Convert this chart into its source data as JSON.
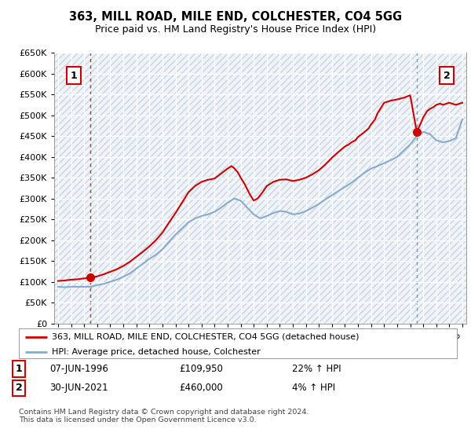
{
  "title": "363, MILL ROAD, MILE END, COLCHESTER, CO4 5GG",
  "subtitle": "Price paid vs. HM Land Registry's House Price Index (HPI)",
  "sale1_date": "07-JUN-1996",
  "sale1_price": 109950,
  "sale1_label": "£109,950",
  "sale1_hpi": "22% ↑ HPI",
  "sale2_date": "30-JUN-2021",
  "sale2_price": 460000,
  "sale2_label": "£460,000",
  "sale2_hpi": "4% ↑ HPI",
  "legend1": "363, MILL ROAD, MILE END, COLCHESTER, CO4 5GG (detached house)",
  "legend2": "HPI: Average price, detached house, Colchester",
  "footer": "Contains HM Land Registry data © Crown copyright and database right 2024.\nThis data is licensed under the Open Government Licence v3.0.",
  "red_color": "#cc0000",
  "blue_color": "#88aacc",
  "grid_color": "#cccccc",
  "sale1_x": 1996.44,
  "sale2_x": 2021.5,
  "hpi_data_x": [
    1994.0,
    1994.5,
    1995.0,
    1995.5,
    1996.0,
    1996.5,
    1997.0,
    1997.5,
    1998.0,
    1998.5,
    1999.0,
    1999.5,
    2000.0,
    2000.5,
    2001.0,
    2001.5,
    2002.0,
    2002.5,
    2003.0,
    2003.5,
    2004.0,
    2004.5,
    2005.0,
    2005.5,
    2006.0,
    2006.5,
    2007.0,
    2007.5,
    2008.0,
    2008.5,
    2009.0,
    2009.5,
    2010.0,
    2010.5,
    2011.0,
    2011.5,
    2012.0,
    2012.5,
    2013.0,
    2013.5,
    2014.0,
    2014.5,
    2015.0,
    2015.5,
    2016.0,
    2016.5,
    2017.0,
    2017.5,
    2018.0,
    2018.5,
    2019.0,
    2019.5,
    2020.0,
    2020.5,
    2021.0,
    2021.5,
    2022.0,
    2022.5,
    2023.0,
    2023.5,
    2024.0,
    2024.5,
    2025.0
  ],
  "hpi_data_y": [
    88000,
    87000,
    88000,
    88000,
    88000,
    88000,
    92000,
    95000,
    100000,
    105000,
    112000,
    120000,
    132000,
    143000,
    155000,
    165000,
    178000,
    196000,
    213000,
    228000,
    243000,
    252000,
    258000,
    262000,
    268000,
    278000,
    290000,
    300000,
    295000,
    278000,
    262000,
    252000,
    258000,
    265000,
    270000,
    268000,
    262000,
    264000,
    270000,
    278000,
    287000,
    298000,
    308000,
    318000,
    328000,
    338000,
    350000,
    362000,
    372000,
    378000,
    385000,
    392000,
    400000,
    415000,
    430000,
    450000,
    460000,
    455000,
    440000,
    435000,
    438000,
    445000,
    490000
  ],
  "price_data_x": [
    1994.0,
    1994.5,
    1995.0,
    1995.5,
    1996.0,
    1996.44,
    1997.0,
    1997.5,
    1998.0,
    1998.5,
    1999.0,
    1999.5,
    2000.0,
    2000.5,
    2001.0,
    2001.5,
    2002.0,
    2002.5,
    2003.0,
    2003.5,
    2004.0,
    2004.5,
    2005.0,
    2005.5,
    2006.0,
    2006.5,
    2007.0,
    2007.3,
    2007.5,
    2007.8,
    2008.0,
    2008.3,
    2008.7,
    2009.0,
    2009.3,
    2009.7,
    2010.0,
    2010.5,
    2011.0,
    2011.5,
    2012.0,
    2012.5,
    2013.0,
    2013.5,
    2014.0,
    2014.5,
    2015.0,
    2015.5,
    2016.0,
    2016.3,
    2016.5,
    2016.8,
    2017.0,
    2017.3,
    2017.5,
    2017.8,
    2018.0,
    2018.3,
    2018.5,
    2018.8,
    2019.0,
    2019.5,
    2020.0,
    2020.5,
    2021.0,
    2021.5,
    2021.8,
    2022.0,
    2022.3,
    2022.5,
    2022.8,
    2023.0,
    2023.3,
    2023.5,
    2024.0,
    2024.5,
    2025.0
  ],
  "price_data_y": [
    102000,
    103000,
    105000,
    106000,
    108000,
    109950,
    113000,
    118000,
    124000,
    130000,
    138000,
    148000,
    160000,
    172000,
    185000,
    200000,
    218000,
    242000,
    265000,
    290000,
    315000,
    330000,
    340000,
    345000,
    348000,
    360000,
    372000,
    378000,
    373000,
    362000,
    350000,
    335000,
    310000,
    295000,
    300000,
    316000,
    330000,
    340000,
    345000,
    346000,
    342000,
    345000,
    350000,
    358000,
    368000,
    382000,
    398000,
    412000,
    425000,
    430000,
    435000,
    440000,
    448000,
    455000,
    460000,
    468000,
    478000,
    490000,
    505000,
    520000,
    530000,
    535000,
    538000,
    542000,
    548000,
    460000,
    480000,
    495000,
    510000,
    515000,
    520000,
    525000,
    528000,
    525000,
    530000,
    525000,
    530000
  ],
  "yticks": [
    0,
    50000,
    100000,
    150000,
    200000,
    250000,
    300000,
    350000,
    400000,
    450000,
    500000,
    550000,
    600000,
    650000
  ],
  "xlim_left": 1993.7,
  "xlim_right": 2025.3
}
